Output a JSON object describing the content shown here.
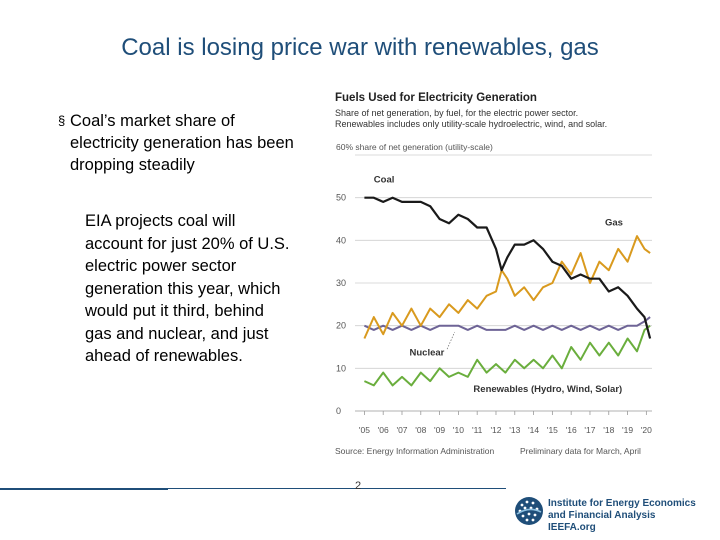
{
  "slide": {
    "title": "Coal is losing price war with renewables, gas",
    "bullet_marker": "§",
    "bullet_text": "Coal’s market share of electricity generation has been dropping steadily",
    "paragraph": "EIA projects coal will account for just 20% of U.S. electric power sector generation this year, which would put it third, behind gas and nuclear, and just ahead of renewables.",
    "page_number": "2"
  },
  "logo": {
    "line1": "Institute for Energy Economics",
    "line2": "and Financial Analysis",
    "line3": "IEEFA.org"
  },
  "colors": {
    "title": "#1f4e79",
    "coal": "#1a1a1a",
    "gas": "#d99a1e",
    "nuclear": "#6e6496",
    "renewables": "#6aae3d"
  },
  "chart_data": {
    "type": "line",
    "title": "Fuels Used for Electricity Generation",
    "subtitle_line1": "Share of net generation, by fuel, for the electric power sector.",
    "subtitle_line2": "Renewables includes only utility-scale hydroelectric, wind, and solar.",
    "y_axis_top_label": "60% share of net generation (utility-scale)",
    "y_ticks": [
      "50",
      "40",
      "30",
      "20",
      "10",
      "0"
    ],
    "y_tick_values": [
      50,
      40,
      30,
      20,
      10,
      0
    ],
    "ylim": [
      0,
      60
    ],
    "x_ticks": [
      "'05",
      "'06",
      "'07",
      "'08",
      "'09",
      "'10",
      "'11",
      "'12",
      "'13",
      "'14",
      "'15",
      "'16",
      "'17",
      "'18",
      "'19",
      "'20"
    ],
    "xlim": [
      2004.5,
      2020.3
    ],
    "source": "Source: Energy Information Administration",
    "note": "Preliminary data for March, April",
    "grid": true,
    "series": [
      {
        "name": "Coal",
        "key": "coal",
        "x": [
          2005.0,
          2005.5,
          2006.0,
          2006.5,
          2007.0,
          2007.5,
          2008.0,
          2008.5,
          2009.0,
          2009.5,
          2010.0,
          2010.5,
          2011.0,
          2011.5,
          2012.0,
          2012.3,
          2012.6,
          2013.0,
          2013.5,
          2014.0,
          2014.5,
          2015.0,
          2015.5,
          2016.0,
          2016.5,
          2017.0,
          2017.5,
          2018.0,
          2018.5,
          2019.0,
          2019.5,
          2019.9,
          2020.2
        ],
        "y": [
          50,
          50,
          49,
          50,
          49,
          49,
          49,
          48,
          45,
          44,
          46,
          45,
          43,
          43,
          38,
          33,
          36,
          39,
          39,
          40,
          38,
          35,
          34,
          31,
          32,
          31,
          31,
          28,
          29,
          27,
          24,
          22,
          17
        ]
      },
      {
        "name": "Gas",
        "key": "gas",
        "x": [
          2005.0,
          2005.5,
          2006.0,
          2006.5,
          2007.0,
          2007.5,
          2008.0,
          2008.5,
          2009.0,
          2009.5,
          2010.0,
          2010.5,
          2011.0,
          2011.5,
          2012.0,
          2012.3,
          2012.6,
          2013.0,
          2013.5,
          2014.0,
          2014.5,
          2015.0,
          2015.5,
          2016.0,
          2016.5,
          2017.0,
          2017.5,
          2018.0,
          2018.5,
          2019.0,
          2019.5,
          2019.9,
          2020.2
        ],
        "y": [
          17,
          22,
          18,
          23,
          20,
          24,
          20,
          24,
          22,
          25,
          23,
          26,
          24,
          27,
          28,
          33,
          31,
          27,
          29,
          26,
          29,
          30,
          35,
          32,
          37,
          30,
          35,
          33,
          38,
          35,
          41,
          38,
          37
        ]
      },
      {
        "name": "Nuclear",
        "key": "nuclear",
        "x": [
          2005.0,
          2005.5,
          2006.0,
          2006.5,
          2007.0,
          2007.5,
          2008.0,
          2008.5,
          2009.0,
          2009.5,
          2010.0,
          2010.5,
          2011.0,
          2011.5,
          2012.0,
          2012.5,
          2013.0,
          2013.5,
          2014.0,
          2014.5,
          2015.0,
          2015.5,
          2016.0,
          2016.5,
          2017.0,
          2017.5,
          2018.0,
          2018.5,
          2019.0,
          2019.5,
          2019.9,
          2020.2
        ],
        "y": [
          20,
          19,
          20,
          19,
          20,
          19,
          20,
          19,
          20,
          20,
          20,
          19,
          20,
          19,
          19,
          19,
          20,
          19,
          20,
          19,
          20,
          19,
          20,
          19,
          20,
          19,
          20,
          19,
          20,
          20,
          21,
          22
        ]
      },
      {
        "name": "Renewables (Hydro, Wind, Solar)",
        "key": "renewables",
        "x": [
          2005.0,
          2005.5,
          2006.0,
          2006.5,
          2007.0,
          2007.5,
          2008.0,
          2008.5,
          2009.0,
          2009.5,
          2010.0,
          2010.5,
          2011.0,
          2011.5,
          2012.0,
          2012.5,
          2013.0,
          2013.5,
          2014.0,
          2014.5,
          2015.0,
          2015.5,
          2016.0,
          2016.5,
          2017.0,
          2017.5,
          2018.0,
          2018.5,
          2019.0,
          2019.5,
          2019.9,
          2020.2
        ],
        "y": [
          7,
          6,
          9,
          6,
          8,
          6,
          9,
          7,
          10,
          8,
          9,
          8,
          12,
          9,
          11,
          9,
          12,
          10,
          12,
          10,
          13,
          10,
          15,
          12,
          16,
          13,
          16,
          13,
          17,
          14,
          19,
          20
        ]
      }
    ]
  }
}
